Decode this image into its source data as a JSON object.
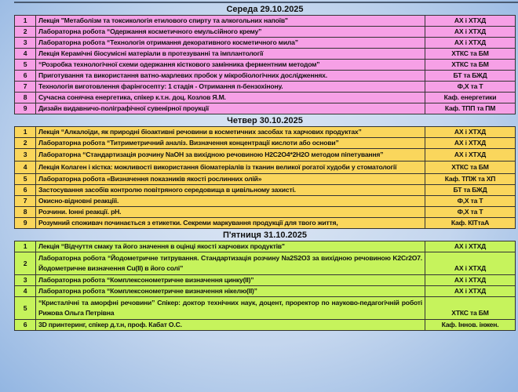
{
  "colors": {
    "wednesday": "#f6a0e6",
    "thursday": "#fad65c",
    "friday": "#c6f35c",
    "background": "#c4d6ee"
  },
  "days": [
    {
      "title": "Середа 29.10.2025",
      "rows": [
        {
          "n": "1",
          "text": "Лекція \"Метаболізм та токсикологія етилового спирту та алкогольних напоїв\"",
          "dept": "АХ і ХТХД"
        },
        {
          "n": "2",
          "text": "Лабораторна робота “Одержання косметичного емульсійного крему”",
          "dept": "АХ і ХТХД"
        },
        {
          "n": "3",
          "text": "Лабораторна робота “Технологія отримання декоративного косметичного мила”",
          "dept": "АХ і ХТХД"
        },
        {
          "n": "4",
          "text": "Лекція Керамічні біосумісні матеріали в протезуванні та імплантології",
          "dept": "ХТКС та БМ"
        },
        {
          "n": "5",
          "text": "“Розробка технологічної схеми одержання кісткового замінника ферментним методом”",
          "dept": "ХТКС та БМ"
        },
        {
          "n": "6",
          "text": "Приготування та використання ватно-марлевих пробок у мікробіологічних дослідженнях.",
          "dept": "БТ та БЖД"
        },
        {
          "n": "7",
          "text": "Технологія виготовлення фарінгосепту: 1 стадія - Отримання п-бензохінону.",
          "dept": "Ф,Х та Т"
        },
        {
          "n": "8",
          "text": "Сучасна сонячна енергетика, спікер к.т.н. доц. Козлов Я.М.",
          "dept": "Каф. енергетики"
        },
        {
          "n": "9",
          "text": "Дизайн видавничо-поліграфічної сувенірної проукції",
          "dept": "Каф. ТПП та ПМ"
        }
      ]
    },
    {
      "title": "Четвер 30.10.2025",
      "rows": [
        {
          "n": "1",
          "text": "Лекція “Алкалоїди, як природні біоактивні речовини в косметичних засобах та харчових продуктах”",
          "dept": "АХ і ХТХД"
        },
        {
          "n": "2",
          "text": "Лабораторна робота “Титриметричний аналіз. Визначення концентрації кислоти або основи”",
          "dept": "АХ і ХТХД"
        },
        {
          "n": "3",
          "text": "Лабораторна “Стандартизація розчину NaOH за вихідною речовиною H2C2O4*2H2O методом піпетування”",
          "dept": "АХ і ХТХД"
        },
        {
          "n": "4",
          "text": "Лекція Колаген і кістка: можливості використання біоматеріалів із тканин великої рогатої худоби у стоматології",
          "dept": "ХТКС та БМ"
        },
        {
          "n": "5",
          "text": "Лабораторна робота «Визначення показників якості рослинних олій»",
          "dept": "Каф. ТПЖ та ХП"
        },
        {
          "n": "6",
          "text": "Застосування засобів контролю повітряного середовища в цивільному захисті.",
          "dept": "БТ та БЖД"
        },
        {
          "n": "7",
          "text": "Окисно-відновні реакціїі.",
          "dept": "Ф,Х та Т"
        },
        {
          "n": "8",
          "text": "Розчини. Іонні реакції. рН.",
          "dept": "Ф,Х та Т"
        },
        {
          "n": "9",
          "text": "Розумний споживач починається з етикетки. Секреми маркування продукції для твого життя,",
          "dept": "Каф. КІТтаА"
        }
      ]
    },
    {
      "title": "П'ятниця 31.10.2025",
      "rows": [
        {
          "n": "1",
          "text": "Лекція “Відчуття смаку та його значення в оцінці якості харчових продуктів\"",
          "dept": "АХ і ХТХД"
        },
        {
          "n": "2",
          "text": "Лабораторна робота “Йодометричне титрування. Стандартизація розчину Na2S2O3 за вихідною речовиною K2Cr2O7. Йодометричне визначення Cu(II) в його солі”",
          "dept": "АХ і ХТХД"
        },
        {
          "n": "3",
          "text": "Лабораторна робота “Комплексонометричне визначення цинку(II)”",
          "dept": "АХ і ХТХД"
        },
        {
          "n": "4",
          "text": "Лабораторна робота “Комплексонометричне визначення нікелю(II)”",
          "dept": "АХ і ХТХД"
        },
        {
          "n": "5",
          "text": "“Кристалічні та аморфні речовини” Спікер: доктор технічних наук, доцент, проректор по науково-педагогічній роботі Рижова Ольга Петрівна",
          "dept": "ХТКС та БМ"
        },
        {
          "n": "6",
          "text": "3D принтеринг, спікер д.т.н, проф. Кабат О.С.",
          "dept": "Каф. Іннов. інжен."
        }
      ]
    }
  ]
}
